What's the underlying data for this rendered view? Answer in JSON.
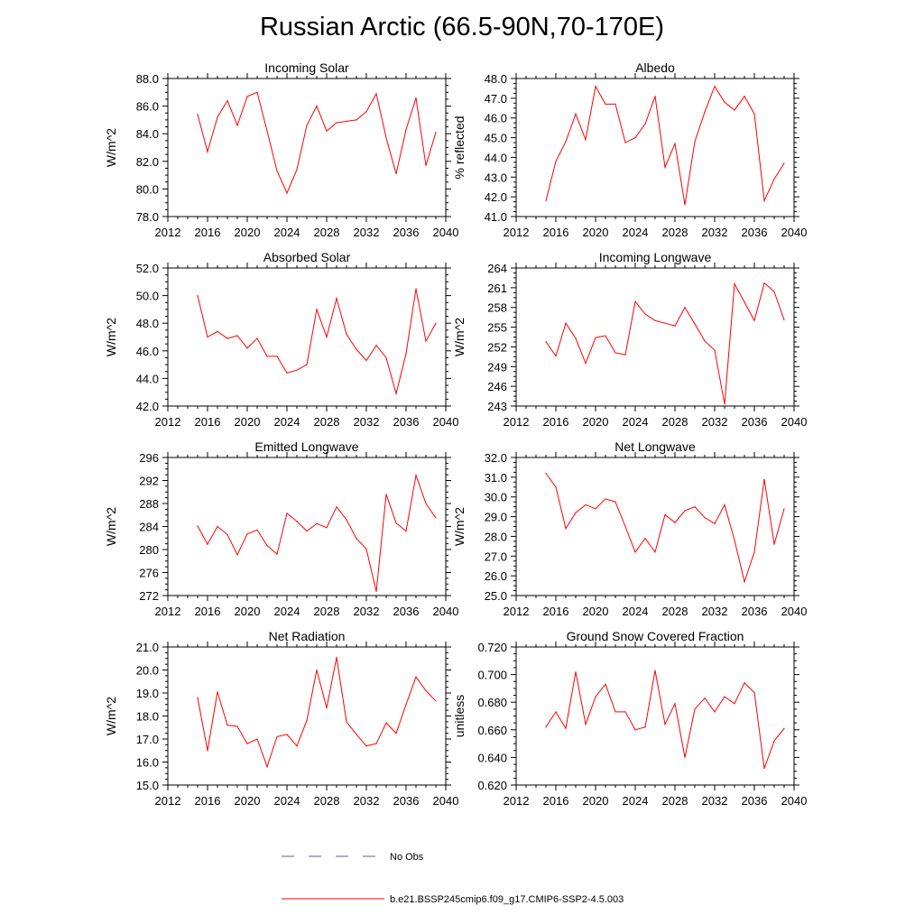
{
  "title": "Russian Arctic (66.5-90N,70-170E)",
  "colors": {
    "model": "#ff0000",
    "obs": "#5a5aa8",
    "axis": "#000000"
  },
  "legend": [
    {
      "label": "No Obs",
      "style": "dashed",
      "color": "#5a5aa8"
    },
    {
      "label": "b.e21.BSSP245cmip6.f09_g17.CMIP6-SSP2-4.5.003",
      "style": "solid",
      "color": "#ff0000"
    }
  ],
  "chart_data": [
    {
      "type": "line",
      "title": "Incoming Solar",
      "ylabel": "W/m^2",
      "xlim": [
        2012,
        2040
      ],
      "xticks": [
        2012,
        2016,
        2020,
        2024,
        2028,
        2032,
        2036,
        2040
      ],
      "ylim": [
        78,
        88
      ],
      "yticks": [
        78,
        80,
        82,
        84,
        86,
        88
      ],
      "ydecimals": 1,
      "x": [
        2015,
        2016,
        2017,
        2018,
        2019,
        2020,
        2021,
        2022,
        2023,
        2024,
        2025,
        2026,
        2027,
        2028,
        2029,
        2030,
        2031,
        2032,
        2033,
        2034,
        2035,
        2036,
        2037,
        2038,
        2039
      ],
      "series": [
        {
          "name": "b.e21.BSSP245cmip6.f09_g17.CMIP6-SSP2-4.5.003",
          "values": [
            85.4,
            82.7,
            85.2,
            86.4,
            84.6,
            86.7,
            87.0,
            84.2,
            81.3,
            79.7,
            81.4,
            84.6,
            86.0,
            84.2,
            84.8,
            84.9,
            85.0,
            85.6,
            86.9,
            83.7,
            81.1,
            84.3,
            86.6,
            81.7,
            84.1
          ]
        }
      ]
    },
    {
      "type": "line",
      "title": "Albedo",
      "ylabel": "% reflected",
      "xlim": [
        2012,
        2040
      ],
      "xticks": [
        2012,
        2016,
        2020,
        2024,
        2028,
        2032,
        2036,
        2040
      ],
      "ylim": [
        41,
        48
      ],
      "yticks": [
        41,
        42,
        43,
        44,
        45,
        46,
        47,
        48
      ],
      "ydecimals": 1,
      "x": [
        2015,
        2016,
        2017,
        2018,
        2019,
        2020,
        2021,
        2022,
        2023,
        2024,
        2025,
        2026,
        2027,
        2028,
        2029,
        2030,
        2031,
        2032,
        2033,
        2034,
        2035,
        2036,
        2037,
        2038,
        2039
      ],
      "series": [
        {
          "name": "b.e21.BSSP245cmip6.f09_g17.CMIP6-SSP2-4.5.003",
          "values": [
            41.8,
            43.8,
            44.8,
            46.2,
            44.9,
            47.6,
            46.7,
            46.7,
            44.75,
            45.0,
            45.7,
            47.1,
            43.5,
            44.7,
            41.6,
            44.8,
            46.3,
            47.6,
            46.8,
            46.4,
            47.1,
            46.2,
            41.8,
            42.9,
            43.7
          ]
        }
      ]
    },
    {
      "type": "line",
      "title": "Absorbed Solar",
      "ylabel": "W/m^2",
      "xlim": [
        2012,
        2040
      ],
      "xticks": [
        2012,
        2016,
        2020,
        2024,
        2028,
        2032,
        2036,
        2040
      ],
      "ylim": [
        42,
        52
      ],
      "yticks": [
        42,
        44,
        46,
        48,
        50,
        52
      ],
      "ydecimals": 1,
      "x": [
        2015,
        2016,
        2017,
        2018,
        2019,
        2020,
        2021,
        2022,
        2023,
        2024,
        2025,
        2026,
        2027,
        2028,
        2029,
        2030,
        2031,
        2032,
        2033,
        2034,
        2035,
        2036,
        2037,
        2038,
        2039
      ],
      "series": [
        {
          "name": "b.e21.BSSP245cmip6.f09_g17.CMIP6-SSP2-4.5.003",
          "values": [
            50.0,
            47.0,
            47.4,
            46.9,
            47.1,
            46.2,
            46.9,
            45.6,
            45.6,
            44.4,
            44.6,
            45.0,
            49.0,
            47.0,
            49.8,
            47.2,
            46.1,
            45.3,
            46.4,
            45.5,
            42.9,
            45.8,
            50.5,
            46.7,
            48.0
          ]
        }
      ]
    },
    {
      "type": "line",
      "title": "Incoming Longwave",
      "ylabel": "W/m^2",
      "xlim": [
        2012,
        2040
      ],
      "xticks": [
        2012,
        2016,
        2020,
        2024,
        2028,
        2032,
        2036,
        2040
      ],
      "ylim": [
        243,
        264
      ],
      "yticks": [
        243,
        246,
        249,
        252,
        255,
        258,
        261,
        264
      ],
      "ydecimals": 0,
      "x": [
        2015,
        2016,
        2017,
        2018,
        2019,
        2020,
        2021,
        2022,
        2023,
        2024,
        2025,
        2026,
        2027,
        2028,
        2029,
        2030,
        2031,
        2032,
        2033,
        2034,
        2035,
        2036,
        2037,
        2038,
        2039
      ],
      "series": [
        {
          "name": "b.e21.BSSP245cmip6.f09_g17.CMIP6-SSP2-4.5.003",
          "values": [
            252.8,
            250.6,
            255.6,
            253.3,
            249.5,
            253.4,
            253.7,
            251.1,
            250.8,
            258.9,
            257.0,
            256.0,
            255.6,
            255.2,
            258.0,
            255.5,
            252.9,
            251.5,
            243.3,
            261.6,
            258.8,
            256.0,
            261.7,
            260.4,
            256.1
          ]
        }
      ]
    },
    {
      "type": "line",
      "title": "Emitted Longwave",
      "ylabel": "W/m^2",
      "xlim": [
        2012,
        2040
      ],
      "xticks": [
        2012,
        2016,
        2020,
        2024,
        2028,
        2032,
        2036,
        2040
      ],
      "ylim": [
        272,
        296
      ],
      "yticks": [
        272,
        276,
        280,
        284,
        288,
        292,
        296
      ],
      "ydecimals": 0,
      "x": [
        2015,
        2016,
        2017,
        2018,
        2019,
        2020,
        2021,
        2022,
        2023,
        2024,
        2025,
        2026,
        2027,
        2028,
        2029,
        2030,
        2031,
        2032,
        2033,
        2034,
        2035,
        2036,
        2037,
        2038,
        2039
      ],
      "series": [
        {
          "name": "b.e21.BSSP245cmip6.f09_g17.CMIP6-SSP2-4.5.003",
          "values": [
            284.1,
            280.9,
            284.0,
            282.6,
            279.1,
            282.7,
            283.4,
            280.7,
            279.2,
            286.3,
            284.9,
            283.2,
            284.5,
            283.8,
            287.4,
            285.2,
            281.9,
            280.1,
            272.7,
            289.6,
            284.6,
            283.2,
            292.9,
            288.0,
            285.5
          ]
        }
      ]
    },
    {
      "type": "line",
      "title": "Net Longwave",
      "ylabel": "W/m^2",
      "xlim": [
        2012,
        2040
      ],
      "xticks": [
        2012,
        2016,
        2020,
        2024,
        2028,
        2032,
        2036,
        2040
      ],
      "ylim": [
        25,
        32
      ],
      "yticks": [
        25,
        26,
        27,
        28,
        29,
        30,
        31,
        32
      ],
      "ydecimals": 1,
      "x": [
        2015,
        2016,
        2017,
        2018,
        2019,
        2020,
        2021,
        2022,
        2023,
        2024,
        2025,
        2026,
        2027,
        2028,
        2029,
        2030,
        2031,
        2032,
        2033,
        2034,
        2035,
        2036,
        2037,
        2038,
        2039
      ],
      "series": [
        {
          "name": "b.e21.BSSP245cmip6.f09_g17.CMIP6-SSP2-4.5.003",
          "values": [
            31.2,
            30.5,
            28.4,
            29.2,
            29.6,
            29.4,
            29.9,
            29.75,
            28.5,
            27.2,
            27.9,
            27.2,
            29.1,
            28.7,
            29.3,
            29.5,
            28.95,
            28.65,
            29.6,
            27.8,
            25.7,
            27.2,
            30.9,
            27.6,
            29.4
          ]
        }
      ]
    },
    {
      "type": "line",
      "title": "Net Radiation",
      "ylabel": "W/m^2",
      "xlim": [
        2012,
        2040
      ],
      "xticks": [
        2012,
        2016,
        2020,
        2024,
        2028,
        2032,
        2036,
        2040
      ],
      "ylim": [
        15,
        21
      ],
      "yticks": [
        15,
        16,
        17,
        18,
        19,
        20,
        21
      ],
      "ydecimals": 1,
      "x": [
        2015,
        2016,
        2017,
        2018,
        2019,
        2020,
        2021,
        2022,
        2023,
        2024,
        2025,
        2026,
        2027,
        2028,
        2029,
        2030,
        2031,
        2032,
        2033,
        2034,
        2035,
        2036,
        2037,
        2038,
        2039
      ],
      "series": [
        {
          "name": "b.e21.BSSP245cmip6.f09_g17.CMIP6-SSP2-4.5.003",
          "values": [
            18.8,
            16.5,
            19.05,
            17.6,
            17.55,
            16.8,
            17.0,
            15.8,
            17.1,
            17.2,
            16.7,
            17.8,
            20.0,
            18.35,
            20.55,
            17.75,
            17.2,
            16.7,
            16.8,
            17.7,
            17.25,
            18.5,
            19.7,
            19.1,
            18.65
          ]
        }
      ]
    },
    {
      "type": "line",
      "title": "Ground Snow Covered Fraction",
      "ylabel": "unitless",
      "xlim": [
        2012,
        2040
      ],
      "xticks": [
        2012,
        2016,
        2020,
        2024,
        2028,
        2032,
        2036,
        2040
      ],
      "ylim": [
        0.62,
        0.72
      ],
      "yticks": [
        0.62,
        0.64,
        0.66,
        0.68,
        0.7,
        0.72
      ],
      "ydecimals": 3,
      "x": [
        2015,
        2016,
        2017,
        2018,
        2019,
        2020,
        2021,
        2022,
        2023,
        2024,
        2025,
        2026,
        2027,
        2028,
        2029,
        2030,
        2031,
        2032,
        2033,
        2034,
        2035,
        2036,
        2037,
        2038,
        2039
      ],
      "series": [
        {
          "name": "b.e21.BSSP245cmip6.f09_g17.CMIP6-SSP2-4.5.003",
          "values": [
            0.662,
            0.673,
            0.661,
            0.702,
            0.664,
            0.684,
            0.693,
            0.673,
            0.673,
            0.66,
            0.662,
            0.703,
            0.664,
            0.679,
            0.64,
            0.675,
            0.683,
            0.673,
            0.684,
            0.679,
            0.694,
            0.687,
            0.632,
            0.652,
            0.661
          ]
        }
      ]
    }
  ]
}
